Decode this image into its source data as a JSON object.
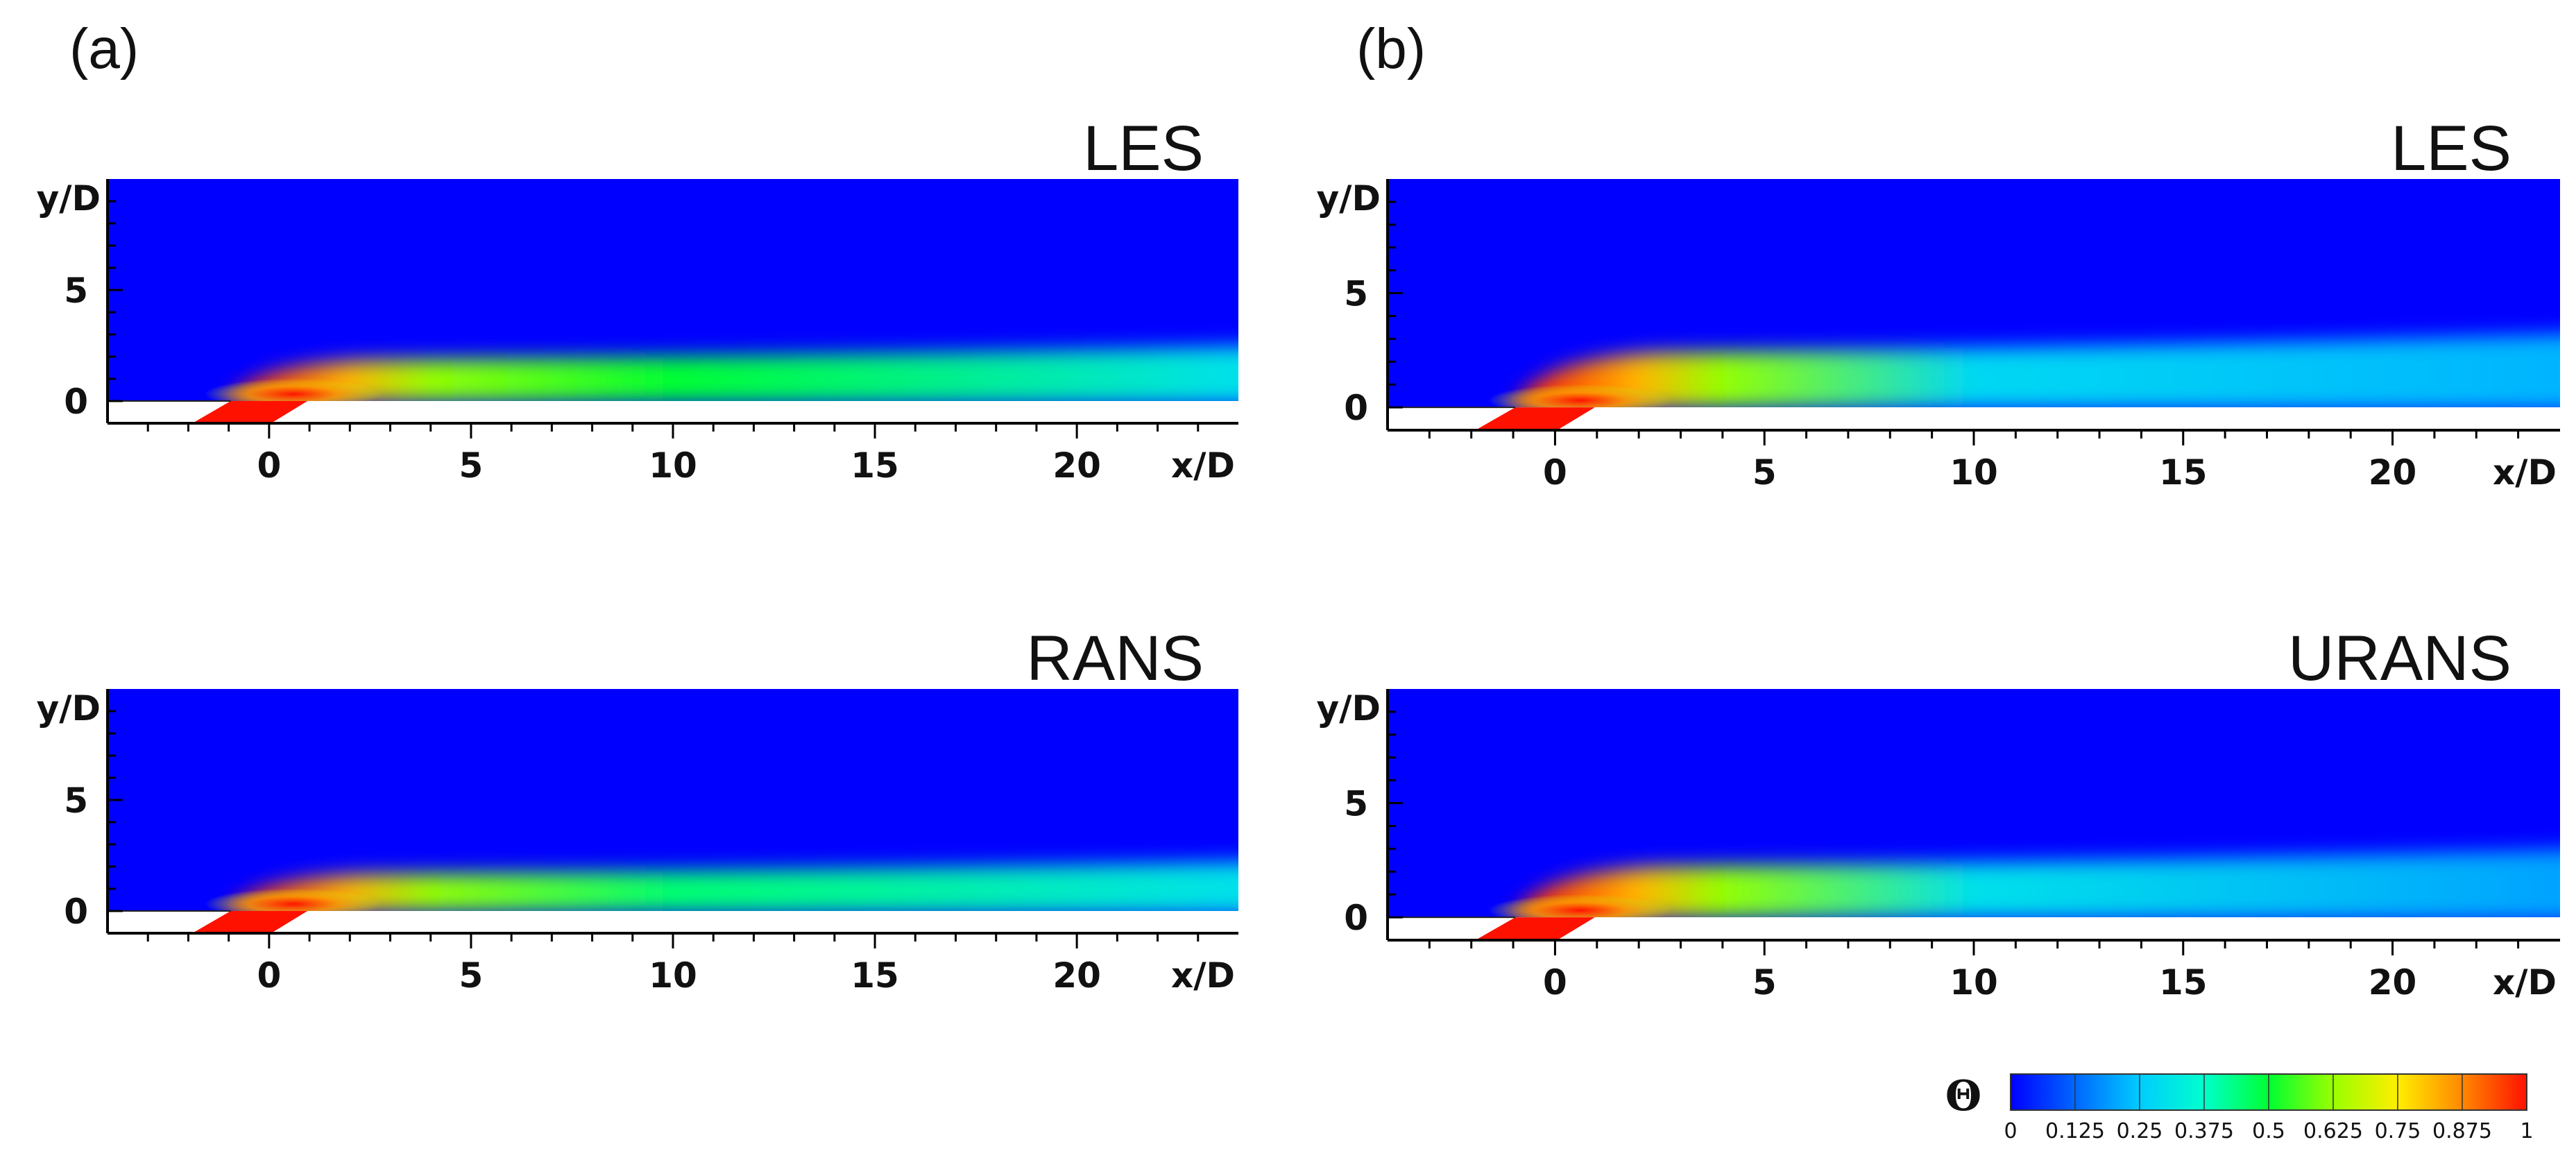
{
  "chart_data": [
    {
      "type": "heatmap",
      "panel": "(a)",
      "title": "LES",
      "quantity": "Θ",
      "xlabel": "x/D",
      "ylabel": "y/D",
      "xlim": [
        -4,
        24
      ],
      "ylim": [
        -1,
        10
      ],
      "x_ticks": [
        0,
        5,
        10,
        15,
        20
      ],
      "y_ticks": [
        0,
        5
      ],
      "jet": {
        "core_theta": 1.0,
        "plume_top_yD": 2.0,
        "theta_at_xD_10": 0.5,
        "theta_at_xD_24": 0.3
      }
    },
    {
      "type": "heatmap",
      "panel": "(b)",
      "title": "LES",
      "quantity": "Θ",
      "xlabel": "x/D",
      "ylabel": "y/D",
      "xlim": [
        -4,
        24
      ],
      "ylim": [
        -1,
        10
      ],
      "x_ticks": [
        0,
        5,
        10,
        15,
        20
      ],
      "y_ticks": [
        0,
        5
      ],
      "jet": {
        "core_theta": 1.0,
        "plume_top_yD": 2.6,
        "theta_at_xD_10": 0.28,
        "theta_at_xD_24": 0.22
      }
    },
    {
      "type": "heatmap",
      "panel": "(a)",
      "title": "RANS",
      "quantity": "Θ",
      "xlabel": "x/D",
      "ylabel": "y/D",
      "xlim": [
        -4,
        24
      ],
      "ylim": [
        -1,
        10
      ],
      "x_ticks": [
        0,
        5,
        10,
        15,
        20
      ],
      "y_ticks": [
        0,
        5
      ],
      "jet": {
        "core_theta": 1.0,
        "plume_top_yD": 1.8,
        "theta_at_xD_10": 0.45,
        "theta_at_xD_24": 0.3
      }
    },
    {
      "type": "heatmap",
      "panel": "(b)",
      "title": "URANS",
      "quantity": "Θ",
      "xlabel": "x/D",
      "ylabel": "y/D",
      "xlim": [
        -4,
        24
      ],
      "ylim": [
        -1,
        10
      ],
      "x_ticks": [
        0,
        5,
        10,
        15,
        20
      ],
      "y_ticks": [
        0,
        5
      ],
      "jet": {
        "core_theta": 1.0,
        "plume_top_yD": 2.4,
        "theta_at_xD_10": 0.3,
        "theta_at_xD_24": 0.2
      }
    }
  ],
  "panel_labels": [
    "(a)",
    "(b)"
  ],
  "colorbar": {
    "symbol": "Θ",
    "tick_labels": [
      "0",
      "0.125",
      "0.25",
      "0.375",
      "0.5",
      "0.625",
      "0.75",
      "0.875",
      "1"
    ],
    "colors": [
      "#0000ff",
      "#0066ff",
      "#00ccff",
      "#00ffcc",
      "#00ff33",
      "#99ff00",
      "#ffee00",
      "#ff8800",
      "#ff1100"
    ]
  }
}
